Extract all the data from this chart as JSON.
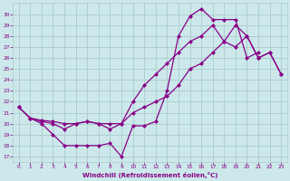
{
  "bg_color": "#cce8ea",
  "grid_color": "#aacccc",
  "line_color": "#880088",
  "xlabel": "Windchill (Refroidissement éolien,°C)",
  "xlabel_color": "#880088",
  "tick_color": "#880088",
  "xlim": [
    -0.5,
    23.5
  ],
  "ylim": [
    16.5,
    31.0
  ],
  "yticks": [
    17,
    18,
    19,
    20,
    21,
    22,
    23,
    24,
    25,
    26,
    27,
    28,
    29,
    30
  ],
  "xticks": [
    0,
    1,
    2,
    3,
    4,
    5,
    6,
    7,
    8,
    9,
    10,
    11,
    12,
    13,
    14,
    15,
    16,
    17,
    18,
    19,
    20,
    21,
    22,
    23
  ],
  "line1_x": [
    0,
    1,
    2,
    3,
    4,
    5,
    6,
    7,
    8,
    9,
    10,
    11,
    12,
    13,
    14,
    15,
    16,
    17,
    18,
    19,
    20,
    21
  ],
  "line1_y": [
    21.5,
    20.5,
    20.0,
    19.0,
    18.0,
    18.0,
    18.0,
    18.0,
    18.2,
    17.0,
    19.8,
    19.8,
    20.2,
    23.0,
    28.0,
    29.8,
    30.5,
    29.5,
    29.5,
    29.5,
    26.0,
    26.5
  ],
  "line2_x": [
    0,
    1,
    2,
    3,
    4,
    5,
    6,
    7,
    8,
    9,
    10,
    11,
    12,
    13,
    14,
    15,
    16,
    17,
    18,
    19,
    20,
    21,
    22,
    23
  ],
  "line2_y": [
    21.5,
    20.5,
    20.3,
    20.2,
    20.0,
    20.0,
    20.2,
    20.0,
    20.0,
    20.0,
    21.0,
    21.5,
    22.0,
    22.5,
    23.5,
    25.0,
    25.5,
    26.5,
    27.5,
    27.0,
    28.0,
    26.0,
    26.5,
    24.5
  ],
  "line3_x": [
    0,
    1,
    2,
    3,
    4,
    5,
    6,
    7,
    8,
    9,
    10,
    11,
    12,
    13,
    14,
    15,
    16,
    17,
    18,
    19,
    20,
    21,
    22,
    23
  ],
  "line3_y": [
    21.5,
    20.5,
    20.2,
    20.0,
    19.5,
    20.0,
    20.2,
    20.0,
    19.5,
    20.0,
    22.0,
    23.5,
    24.5,
    25.5,
    26.5,
    27.5,
    28.0,
    29.0,
    27.5,
    29.0,
    28.0,
    26.0,
    26.5,
    24.5
  ]
}
